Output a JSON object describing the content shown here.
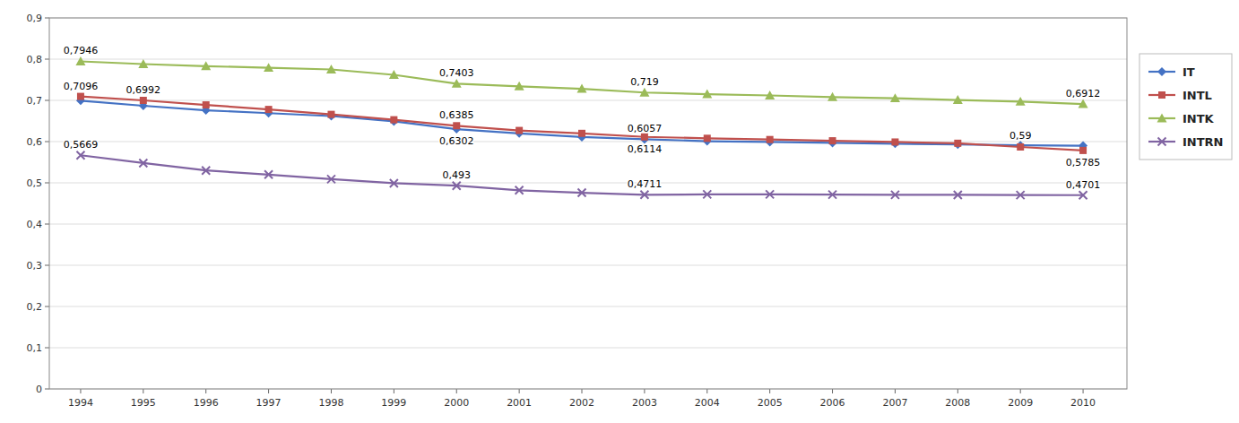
{
  "chart_data": {
    "type": "line",
    "x": [
      1994,
      1995,
      1996,
      1997,
      1998,
      1999,
      2000,
      2001,
      2002,
      2003,
      2004,
      2005,
      2006,
      2007,
      2008,
      2009,
      2010
    ],
    "xlim": [
      1993.5,
      2010.7
    ],
    "xticks": [
      1994,
      1995,
      1996,
      1997,
      1998,
      1999,
      2000,
      2001,
      2002,
      2003,
      2004,
      2005,
      2006,
      2007,
      2008,
      2009,
      2010
    ],
    "ylim": [
      0,
      0.9
    ],
    "yticks": [
      0,
      {
        "value": 0.1,
        "label": "0,1"
      },
      {
        "value": 0.2,
        "label": "0,2"
      },
      {
        "value": 0.3,
        "label": "0,3"
      },
      {
        "value": 0.4,
        "label": "0,4"
      },
      {
        "value": 0.5,
        "label": "0,5"
      },
      {
        "value": 0.6,
        "label": "0,6"
      },
      {
        "value": 0.7,
        "label": "0,7"
      },
      {
        "value": 0.8,
        "label": "0,8"
      },
      {
        "value": 0.9,
        "label": "0,9"
      }
    ],
    "grid": true,
    "legend": "right",
    "series": [
      {
        "name": "IT",
        "color": "#4472C4",
        "marker": "diamond",
        "values": [
          0.6992,
          0.687,
          0.676,
          0.669,
          0.662,
          0.649,
          0.6302,
          0.62,
          0.611,
          0.6057,
          0.601,
          0.599,
          0.597,
          0.595,
          0.593,
          0.591,
          0.59
        ]
      },
      {
        "name": "INTL",
        "color": "#C0504D",
        "marker": "square",
        "values": [
          0.7096,
          0.7,
          0.689,
          0.678,
          0.666,
          0.653,
          0.6385,
          0.627,
          0.62,
          0.6114,
          0.608,
          0.605,
          0.602,
          0.599,
          0.596,
          0.587,
          0.5785
        ]
      },
      {
        "name": "INTK",
        "color": "#9BBB59",
        "marker": "triangle",
        "values": [
          0.7946,
          0.788,
          0.783,
          0.779,
          0.775,
          0.762,
          0.7403,
          0.734,
          0.728,
          0.719,
          0.715,
          0.712,
          0.708,
          0.705,
          0.701,
          0.697,
          0.6912
        ]
      },
      {
        "name": "INTRN",
        "color": "#8064A2",
        "marker": "x",
        "values": [
          0.5669,
          0.548,
          0.53,
          0.52,
          0.509,
          0.499,
          0.493,
          0.482,
          0.476,
          0.4711,
          0.472,
          0.472,
          0.4715,
          0.471,
          0.4708,
          0.4703,
          0.4701
        ]
      }
    ],
    "annotations": [
      {
        "text": "0,6992",
        "x": 1995,
        "y": 0.6992
      },
      {
        "text": "0,6302",
        "x": 2000,
        "y": 0.6302
      },
      {
        "text": "0,6057",
        "x": 2003,
        "y": 0.6057
      },
      {
        "text": "0,59",
        "x": 2009,
        "y": 0.59
      },
      {
        "text": "0,7096",
        "x": 1994,
        "y": 0.7096
      },
      {
        "text": "0,6385",
        "x": 2000,
        "y": 0.6385
      },
      {
        "text": "0,6114",
        "x": 2003,
        "y": 0.6114
      },
      {
        "text": "0,5785",
        "x": 2010,
        "y": 0.5785
      },
      {
        "text": "0,7946",
        "x": 1994,
        "y": 0.7946
      },
      {
        "text": "0,7403",
        "x": 2000,
        "y": 0.7403
      },
      {
        "text": "0,719",
        "x": 2003,
        "y": 0.719
      },
      {
        "text": "0,6912",
        "x": 2010,
        "y": 0.6912
      },
      {
        "text": "0,5669",
        "x": 1994,
        "y": 0.5669
      },
      {
        "text": "0,493",
        "x": 2000,
        "y": 0.493
      },
      {
        "text": "0,4711",
        "x": 2003,
        "y": 0.4711
      },
      {
        "text": "0,4701",
        "x": 2010,
        "y": 0.4701
      }
    ]
  }
}
